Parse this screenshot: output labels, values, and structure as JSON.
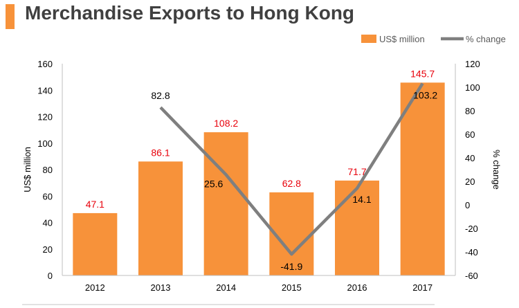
{
  "header": {
    "title": "Merchandise Exports to Hong Kong",
    "accent_color": "#F7923A"
  },
  "chart_data": {
    "type": "bar",
    "title": "",
    "categories": [
      "2012",
      "2013",
      "2014",
      "2015",
      "2016",
      "2017"
    ],
    "series": [
      {
        "name": "US$ million",
        "type": "bar",
        "axis": "left",
        "color": "#F7923A",
        "values": [
          47.1,
          86.1,
          108.2,
          62.8,
          71.7,
          145.7
        ],
        "labels": [
          "47.1",
          "86.1",
          "108.2",
          "62.8",
          "71.7",
          "145.7"
        ]
      },
      {
        "name": "% change",
        "type": "line",
        "axis": "right",
        "color": "#7F7F7F",
        "values": [
          null,
          82.8,
          25.6,
          -41.9,
          14.1,
          103.2
        ],
        "labels": [
          "",
          "82.8",
          "25.6",
          "-41.9",
          "14.1",
          "103.2"
        ]
      }
    ],
    "ylabel": "US$ million",
    "y2label": "% change",
    "ylim": [
      0,
      160
    ],
    "y2lim": [
      -60,
      120
    ],
    "yticks": [
      "0",
      "20",
      "40",
      "60",
      "80",
      "100",
      "120",
      "140",
      "160"
    ],
    "y2ticks": [
      "-60",
      "-40",
      "-20",
      "0",
      "20",
      "40",
      "60",
      "80",
      "100",
      "120"
    ],
    "legend_position": "top-right",
    "data_label_color": "#E8000B",
    "grid": false
  }
}
